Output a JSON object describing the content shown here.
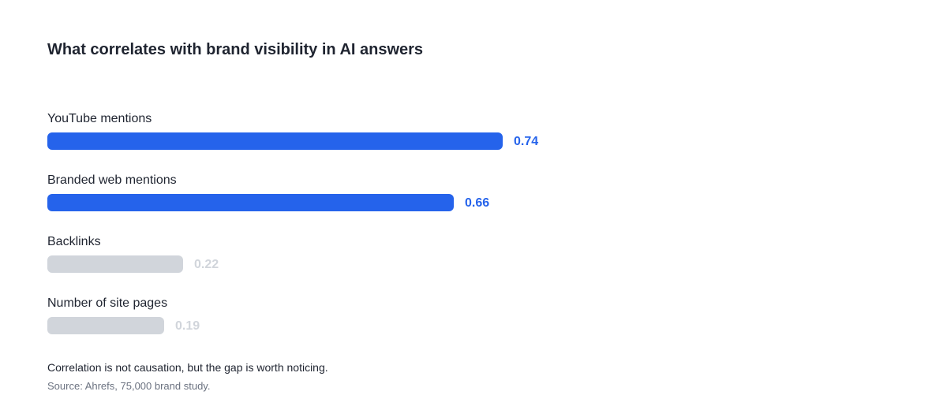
{
  "chart_data": {
    "type": "bar",
    "orientation": "horizontal",
    "title": "What correlates with brand visibility in AI answers",
    "categories": [
      "YouTube mentions",
      "Branded web mentions",
      "Backlinks",
      "Number of site pages"
    ],
    "values": [
      0.74,
      0.66,
      0.22,
      0.19
    ],
    "value_labels": [
      "0.74",
      "0.66",
      "0.22",
      "0.19"
    ],
    "highlighted": [
      true,
      true,
      false,
      false
    ],
    "xlim": [
      0,
      1
    ],
    "grid": false,
    "colors": {
      "highlight": "#2563eb",
      "muted_bar": "#d1d5db",
      "muted_label": "#d1d5db"
    }
  },
  "footnote": "Correlation is not causation, but the gap is worth noticing.",
  "source": "Source: Ahrefs, 75,000 brand study."
}
